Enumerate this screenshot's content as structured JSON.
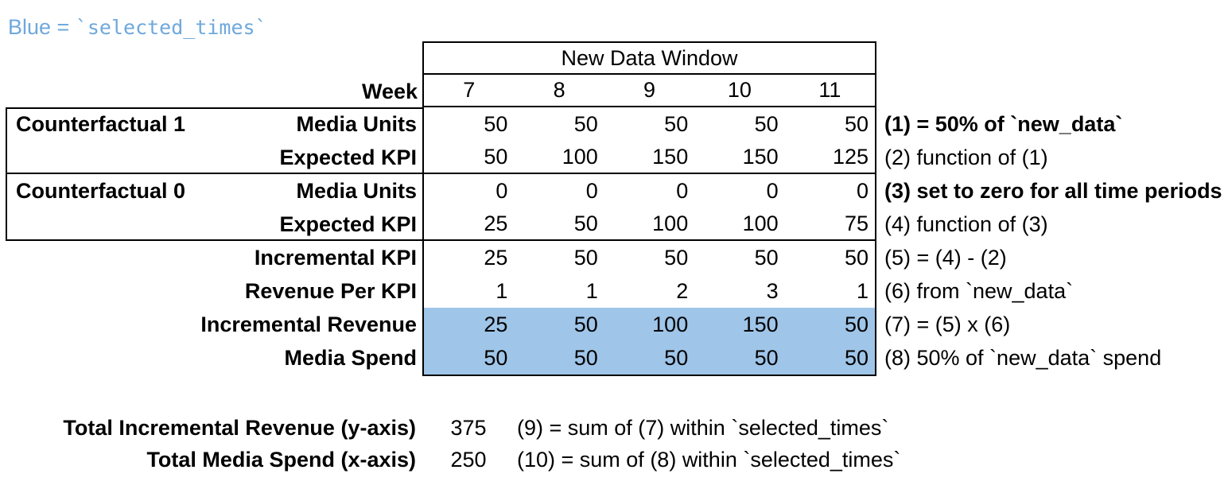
{
  "note": {
    "prefix": "Blue = ",
    "code": "`selected_times`"
  },
  "colors": {
    "highlight_blue": "#9fc5e8",
    "note_blue": "#6fa8dc",
    "border": "#000000"
  },
  "table": {
    "window_header": "New Data Window",
    "week_label": "Week",
    "weeks": [
      "7",
      "8",
      "9",
      "10",
      "11"
    ],
    "groups": [
      {
        "label": "Counterfactual 1",
        "row_start": 0,
        "row_count": 2
      },
      {
        "label": "Counterfactual 0",
        "row_start": 2,
        "row_count": 2
      }
    ],
    "rows": [
      {
        "label": "Media Units",
        "values": [
          "50",
          "50",
          "50",
          "50",
          "50"
        ],
        "annotation": "(1) = 50% of `new_data`",
        "annotation_bold": true,
        "highlight": false
      },
      {
        "label": "Expected KPI",
        "values": [
          "50",
          "100",
          "150",
          "150",
          "125"
        ],
        "annotation": "(2) function of (1)",
        "annotation_bold": false,
        "highlight": false
      },
      {
        "label": "Media Units",
        "values": [
          "0",
          "0",
          "0",
          "0",
          "0"
        ],
        "annotation": "(3) set to zero for all time periods",
        "annotation_bold": true,
        "highlight": false
      },
      {
        "label": "Expected KPI",
        "values": [
          "25",
          "50",
          "100",
          "100",
          "75"
        ],
        "annotation": "(4) function of (3)",
        "annotation_bold": false,
        "highlight": false
      },
      {
        "label": "Incremental KPI",
        "values": [
          "25",
          "50",
          "50",
          "50",
          "50"
        ],
        "annotation": "(5) = (4) - (2)",
        "annotation_bold": false,
        "highlight": false
      },
      {
        "label": "Revenue Per KPI",
        "values": [
          "1",
          "1",
          "2",
          "3",
          "1"
        ],
        "annotation": "(6) from `new_data`",
        "annotation_bold": false,
        "highlight": false
      },
      {
        "label": "Incremental Revenue",
        "values": [
          "25",
          "50",
          "100",
          "150",
          "50"
        ],
        "annotation": "(7) = (5) x (6)",
        "annotation_bold": false,
        "highlight": true
      },
      {
        "label": "Media Spend",
        "values": [
          "50",
          "50",
          "50",
          "50",
          "50"
        ],
        "annotation": "(8) 50% of `new_data` spend",
        "annotation_bold": false,
        "highlight": true
      }
    ]
  },
  "totals": [
    {
      "label": "Total Incremental Revenue (y-axis)",
      "value": "375",
      "annotation": "(9) = sum of (7) within `selected_times`"
    },
    {
      "label": "Total Media Spend (x-axis)",
      "value": "250",
      "annotation": "(10) = sum of (8) within `selected_times`"
    }
  ]
}
